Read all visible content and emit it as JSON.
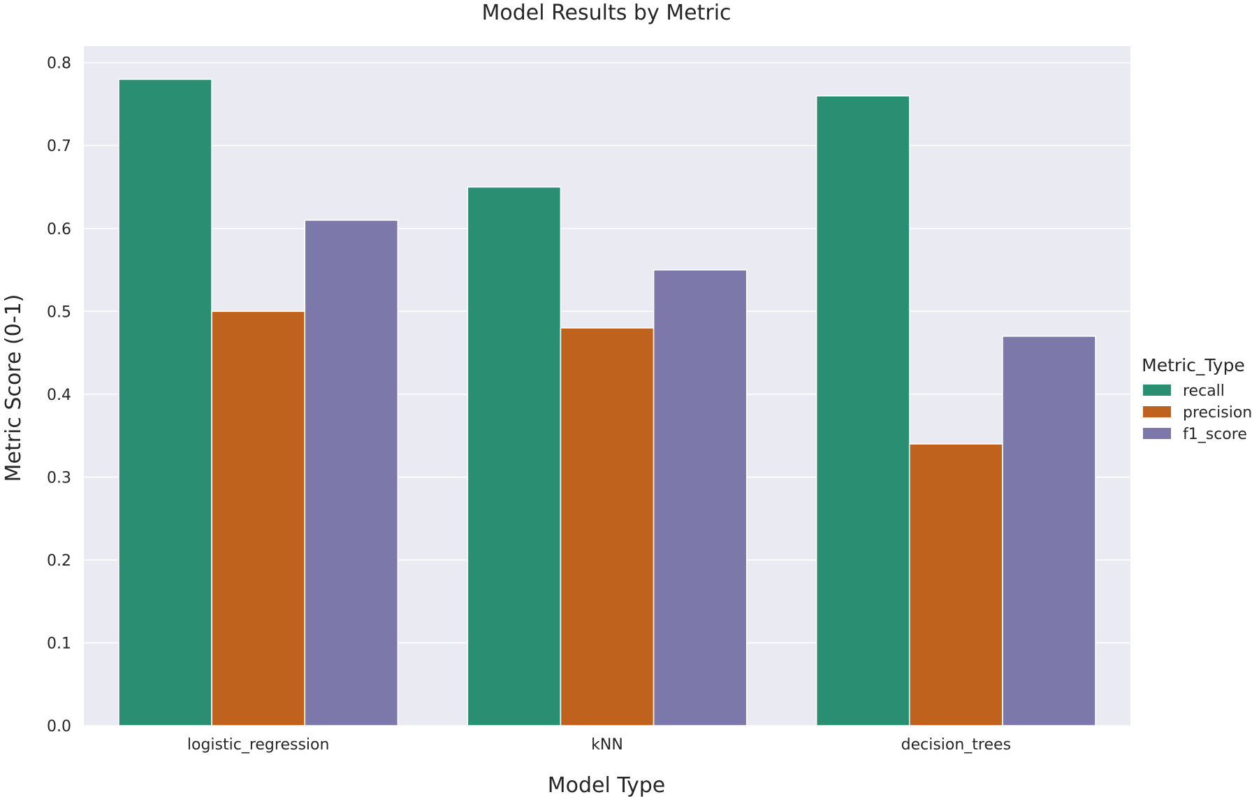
{
  "chart_data": {
    "type": "bar",
    "title": "Model Results by Metric",
    "xlabel": "Model Type",
    "ylabel": "Metric Score (0-1)",
    "categories": [
      "logistic_regression",
      "kNN",
      "decision_trees"
    ],
    "series": [
      {
        "name": "recall",
        "color": "#2a8f72",
        "values": [
          0.78,
          0.65,
          0.76
        ]
      },
      {
        "name": "precision",
        "color": "#bf621e",
        "values": [
          0.5,
          0.48,
          0.34
        ]
      },
      {
        "name": "f1_score",
        "color": "#7c78aa",
        "values": [
          0.61,
          0.55,
          0.47
        ]
      }
    ],
    "ylim": [
      0,
      0.82
    ],
    "yticks": [
      0.0,
      0.1,
      0.2,
      0.3,
      0.4,
      0.5,
      0.6,
      0.7,
      0.8
    ],
    "ytick_labels": [
      "0.0",
      "0.1",
      "0.2",
      "0.3",
      "0.4",
      "0.5",
      "0.6",
      "0.7",
      "0.8"
    ],
    "grid": true,
    "legend": {
      "title": "Metric_Type",
      "position": "right"
    },
    "plot_background": "#eaeaf2",
    "grid_color": "#ffffff"
  }
}
